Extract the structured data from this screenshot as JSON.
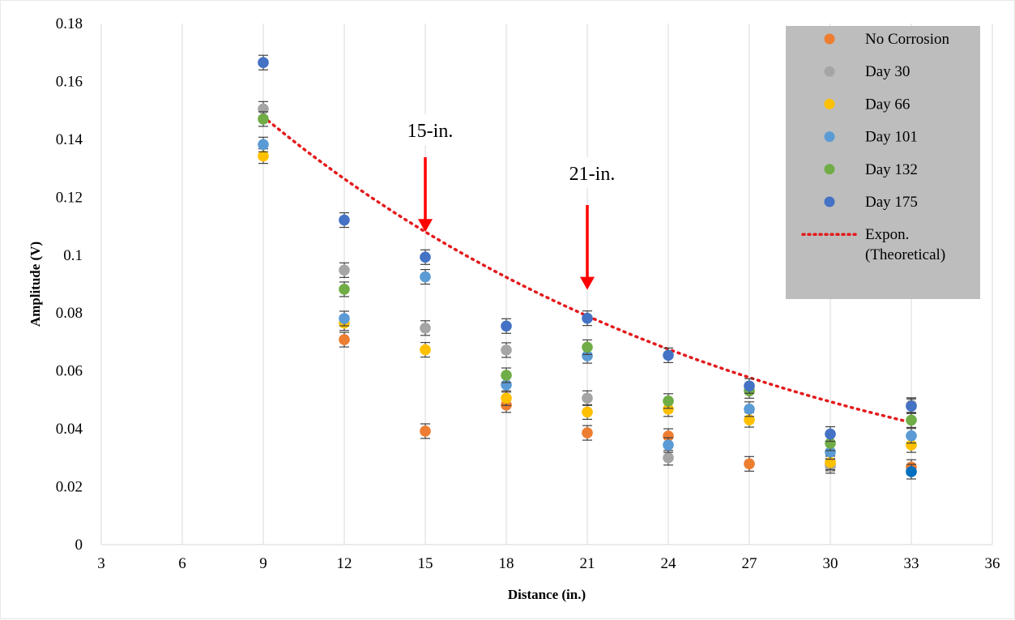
{
  "chart_data": {
    "type": "scatter",
    "title": "",
    "xlabel": "Distance (in.)",
    "ylabel": "Amplitude (V)",
    "xlim": [
      3,
      36
    ],
    "ylim": [
      0,
      0.18
    ],
    "xticks": [
      "3",
      "6",
      "9",
      "12",
      "15",
      "18",
      "21",
      "24",
      "27",
      "30",
      "33",
      "36"
    ],
    "yticks": [
      "0",
      "0.02",
      "0.04",
      "0.06",
      "0.08",
      "0.1",
      "0.12",
      "0.14",
      "0.16",
      "0.18"
    ],
    "grid": "vertical",
    "legend_position": "top-right",
    "x": [
      9,
      12,
      15,
      18,
      21,
      24,
      27,
      30,
      33
    ],
    "series": [
      {
        "name": "No Corrosion",
        "color": "#ED7D31",
        "values": [
          null,
          0.0708,
          0.0392,
          0.0482,
          0.0386,
          0.0375,
          0.0279,
          0.028,
          0.0268
        ]
      },
      {
        "name": "Day 30",
        "color": "#A5A5A5",
        "values": [
          0.1505,
          0.0948,
          0.0748,
          0.0672,
          0.0506,
          0.03,
          null,
          0.0272,
          0.0482
        ]
      },
      {
        "name": "Day 66",
        "color": "#FFC000",
        "values": [
          0.1342,
          0.0765,
          0.0673,
          0.0506,
          0.0458,
          0.0468,
          0.0431,
          0.0284,
          0.0344
        ]
      },
      {
        "name": "Day 101",
        "color": "#5B9BD5",
        "values": [
          0.1382,
          0.0781,
          0.0925,
          0.0552,
          0.0652,
          0.0344,
          0.0468,
          0.032,
          0.0376
        ]
      },
      {
        "name": "Day 132",
        "color": "#70AD47",
        "values": [
          0.147,
          0.0882,
          null,
          0.0585,
          0.0682,
          0.0496,
          0.0531,
          0.035,
          0.043
        ]
      },
      {
        "name": "Day 175",
        "color": "#4472C4",
        "values": [
          0.1665,
          0.1121,
          0.0993,
          0.0755,
          0.0782,
          0.0654,
          0.0548,
          0.0382,
          0.0478
        ]
      }
    ],
    "extra_points": [
      {
        "x": 33,
        "y": 0.0252,
        "color": "#0070C0"
      }
    ],
    "trendline": {
      "name": "Expon. (Theoretical)",
      "color": "#E31A1C",
      "x_start": 9,
      "x_end": 33,
      "y_start": 0.1478,
      "y_end": 0.0422
    },
    "annotations": [
      {
        "label": "15-in.",
        "x": 15,
        "arrow_tip_y": 0.108
      },
      {
        "label": "21-in.",
        "x": 21,
        "arrow_tip_y": 0.088
      }
    ],
    "legend": {
      "background": "#BDBDBD",
      "trend_label_lines": [
        "Expon.",
        "(Theoretical)"
      ]
    }
  }
}
